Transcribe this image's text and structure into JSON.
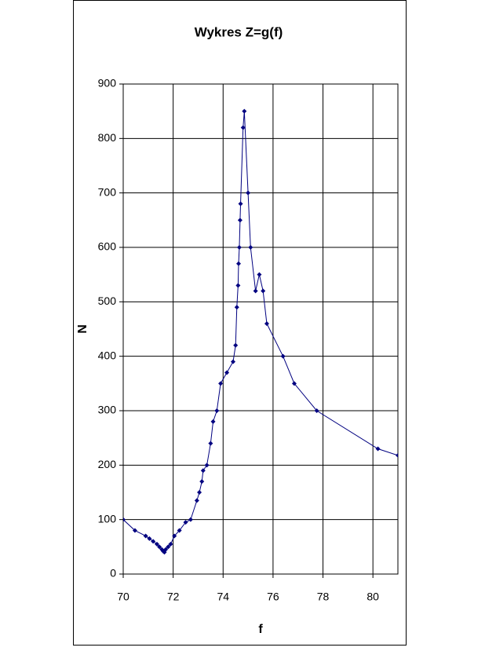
{
  "chart_data": {
    "type": "line",
    "title": "Wykres Z=g(f)",
    "x_label": "f",
    "y_label": "N",
    "x": [
      70,
      70.47,
      70.9,
      71.05,
      71.2,
      71.35,
      71.45,
      71.55,
      71.6,
      71.65,
      71.7,
      71.8,
      71.9,
      72.05,
      72.25,
      72.5,
      72.7,
      72.95,
      73.05,
      73.15,
      73.2,
      73.35,
      73.5,
      73.6,
      73.75,
      73.9,
      74.15,
      74.4,
      74.5,
      74.55,
      74.6,
      74.62,
      74.65,
      74.68,
      74.7,
      74.8,
      74.85,
      75.0,
      75.1,
      75.3,
      75.45,
      75.6,
      75.75,
      76.4,
      76.85,
      77.75,
      80.2,
      81
    ],
    "series": [
      {
        "name": "N",
        "color": "#000080",
        "values": [
          100,
          80,
          70,
          65,
          60,
          55,
          50,
          45,
          42,
          40,
          45,
          50,
          55,
          70,
          80,
          95,
          100,
          135,
          150,
          170,
          190,
          200,
          240,
          280,
          300,
          350,
          370,
          390,
          420,
          490,
          530,
          570,
          600,
          650,
          680,
          820,
          850,
          700,
          600,
          520,
          550,
          520,
          460,
          400,
          350,
          300,
          230,
          218
        ]
      }
    ],
    "xlim": [
      70,
      81
    ],
    "xticks": [
      70,
      72,
      74,
      76,
      78,
      80
    ],
    "ylim": [
      0,
      900
    ],
    "yticks": [
      0,
      100,
      200,
      300,
      400,
      500,
      600,
      700,
      800,
      900
    ],
    "grid": true
  }
}
